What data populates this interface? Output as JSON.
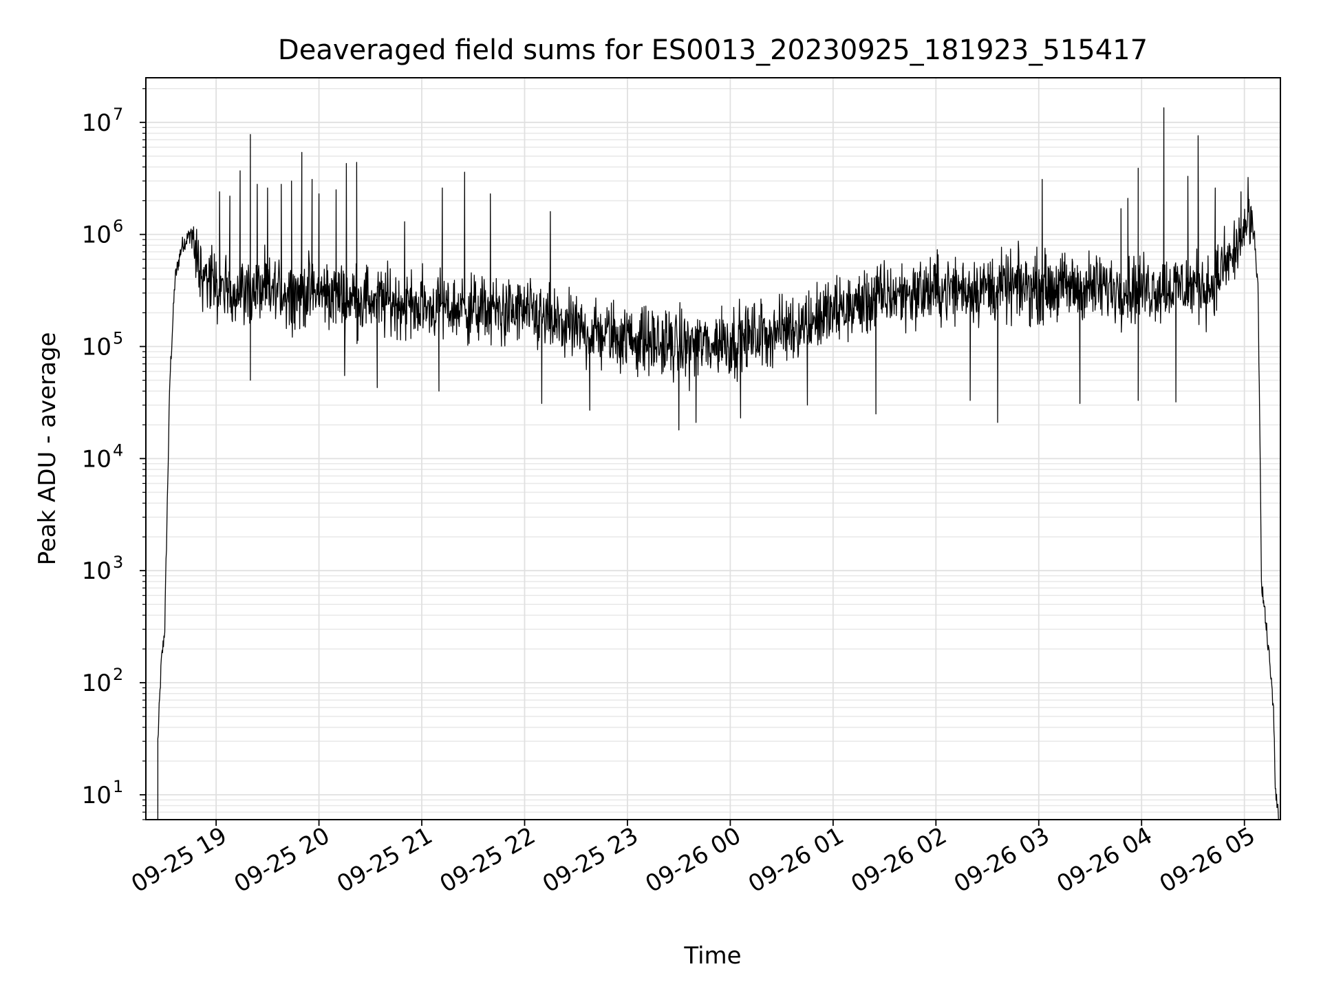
{
  "chart_data": {
    "type": "line",
    "title": "Deaveraged field sums for ES0013_20230925_181923_515417",
    "xlabel": "Time",
    "ylabel": "Peak ADU - average",
    "yscale": "log",
    "ylim": [
      6,
      25000000
    ],
    "xlim": [
      "2023-09-25 18:19",
      "2023-09-26 05:21"
    ],
    "grid": true,
    "grid_minor": true,
    "line_color": "#000000",
    "x_ticks": [
      {
        "time": "2023-09-25 19:00",
        "label": "09-25 19"
      },
      {
        "time": "2023-09-25 20:00",
        "label": "09-25 20"
      },
      {
        "time": "2023-09-25 21:00",
        "label": "09-25 21"
      },
      {
        "time": "2023-09-25 22:00",
        "label": "09-25 22"
      },
      {
        "time": "2023-09-25 23:00",
        "label": "09-25 23"
      },
      {
        "time": "2023-09-26 00:00",
        "label": "09-26 00"
      },
      {
        "time": "2023-09-26 01:00",
        "label": "09-26 01"
      },
      {
        "time": "2023-09-26 02:00",
        "label": "09-26 02"
      },
      {
        "time": "2023-09-26 03:00",
        "label": "09-26 03"
      },
      {
        "time": "2023-09-26 04:00",
        "label": "09-26 04"
      },
      {
        "time": "2023-09-26 05:00",
        "label": "09-26 05"
      }
    ],
    "y_ticks": [
      {
        "value": 10,
        "base": "10",
        "exp": "1"
      },
      {
        "value": 100,
        "base": "10",
        "exp": "2"
      },
      {
        "value": 1000,
        "base": "10",
        "exp": "3"
      },
      {
        "value": 10000,
        "base": "10",
        "exp": "4"
      },
      {
        "value": 100000,
        "base": "10",
        "exp": "5"
      },
      {
        "value": 1000000,
        "base": "10",
        "exp": "6"
      },
      {
        "value": 10000000,
        "base": "10",
        "exp": "7"
      }
    ],
    "series": [
      {
        "baseline": [
          [
            "2023-09-25 18:26",
            30
          ],
          [
            "2023-09-25 18:28",
            150
          ],
          [
            "2023-09-25 18:30",
            300
          ],
          [
            "2023-09-25 18:33",
            50000
          ],
          [
            "2023-09-25 18:36",
            400000
          ],
          [
            "2023-09-25 18:40",
            800000
          ],
          [
            "2023-09-25 18:45",
            1000000
          ],
          [
            "2023-09-25 18:50",
            500000
          ],
          [
            "2023-09-25 19:00",
            320000
          ],
          [
            "2023-09-25 20:00",
            300000
          ],
          [
            "2023-09-25 21:00",
            230000
          ],
          [
            "2023-09-25 22:00",
            200000
          ],
          [
            "2023-09-25 22:30",
            140000
          ],
          [
            "2023-09-25 23:00",
            120000
          ],
          [
            "2023-09-25 23:30",
            100000
          ],
          [
            "2023-09-26 00:00",
            110000
          ],
          [
            "2023-09-26 00:30",
            140000
          ],
          [
            "2023-09-26 01:00",
            200000
          ],
          [
            "2023-09-26 01:30",
            280000
          ],
          [
            "2023-09-26 02:00",
            320000
          ],
          [
            "2023-09-26 03:00",
            340000
          ],
          [
            "2023-09-26 04:00",
            330000
          ],
          [
            "2023-09-26 04:40",
            350000
          ],
          [
            "2023-09-26 04:55",
            700000
          ],
          [
            "2023-09-26 05:02",
            1300000
          ],
          [
            "2023-09-26 05:06",
            900000
          ],
          [
            "2023-09-26 05:08",
            300000
          ],
          [
            "2023-09-26 05:10",
            800
          ],
          [
            "2023-09-26 05:14",
            200
          ],
          [
            "2023-09-26 05:17",
            60
          ],
          [
            "2023-09-26 05:18",
            12
          ],
          [
            "2023-09-26 05:20",
            6
          ]
        ],
        "noise_band_decades": 0.45,
        "spikes": [
          [
            "2023-09-25 19:02",
            2400000
          ],
          [
            "2023-09-25 19:08",
            2200000
          ],
          [
            "2023-09-25 19:14",
            3700000
          ],
          [
            "2023-09-25 19:20",
            7800000
          ],
          [
            "2023-09-25 19:24",
            2800000
          ],
          [
            "2023-09-25 19:30",
            2600000
          ],
          [
            "2023-09-25 19:38",
            2800000
          ],
          [
            "2023-09-25 19:44",
            3000000
          ],
          [
            "2023-09-25 19:50",
            5400000
          ],
          [
            "2023-09-25 19:56",
            3100000
          ],
          [
            "2023-09-25 20:00",
            2300000
          ],
          [
            "2023-09-25 20:10",
            2500000
          ],
          [
            "2023-09-25 20:16",
            4300000
          ],
          [
            "2023-09-25 20:22",
            4400000
          ],
          [
            "2023-09-25 20:50",
            1300000
          ],
          [
            "2023-09-25 21:12",
            2600000
          ],
          [
            "2023-09-25 21:25",
            3600000
          ],
          [
            "2023-09-25 21:40",
            2300000
          ],
          [
            "2023-09-25 22:15",
            1600000
          ],
          [
            "2023-09-25 23:55",
            230000
          ],
          [
            "2023-09-26 02:28",
            550000
          ],
          [
            "2023-09-26 03:02",
            3100000
          ],
          [
            "2023-09-26 03:48",
            1700000
          ],
          [
            "2023-09-26 03:52",
            2100000
          ],
          [
            "2023-09-26 03:58",
            3900000
          ],
          [
            "2023-09-26 04:13",
            13500000
          ],
          [
            "2023-09-26 04:27",
            3300000
          ],
          [
            "2023-09-26 04:33",
            7600000
          ],
          [
            "2023-09-26 04:43",
            2600000
          ],
          [
            "2023-09-26 04:58",
            2400000
          ]
        ],
        "dips": [
          [
            "2023-09-25 19:20",
            50000
          ],
          [
            "2023-09-25 20:15",
            55000
          ],
          [
            "2023-09-25 20:34",
            43000
          ],
          [
            "2023-09-25 21:10",
            40000
          ],
          [
            "2023-09-25 22:10",
            31000
          ],
          [
            "2023-09-25 22:38",
            27000
          ],
          [
            "2023-09-25 23:30",
            18000
          ],
          [
            "2023-09-25 23:40",
            21000
          ],
          [
            "2023-09-26 00:06",
            23000
          ],
          [
            "2023-09-26 00:45",
            30000
          ],
          [
            "2023-09-26 01:25",
            25000
          ],
          [
            "2023-09-26 02:20",
            33000
          ],
          [
            "2023-09-26 02:36",
            21000
          ],
          [
            "2023-09-26 03:24",
            31000
          ],
          [
            "2023-09-26 03:58",
            33000
          ],
          [
            "2023-09-26 04:20",
            32000
          ]
        ]
      }
    ]
  }
}
